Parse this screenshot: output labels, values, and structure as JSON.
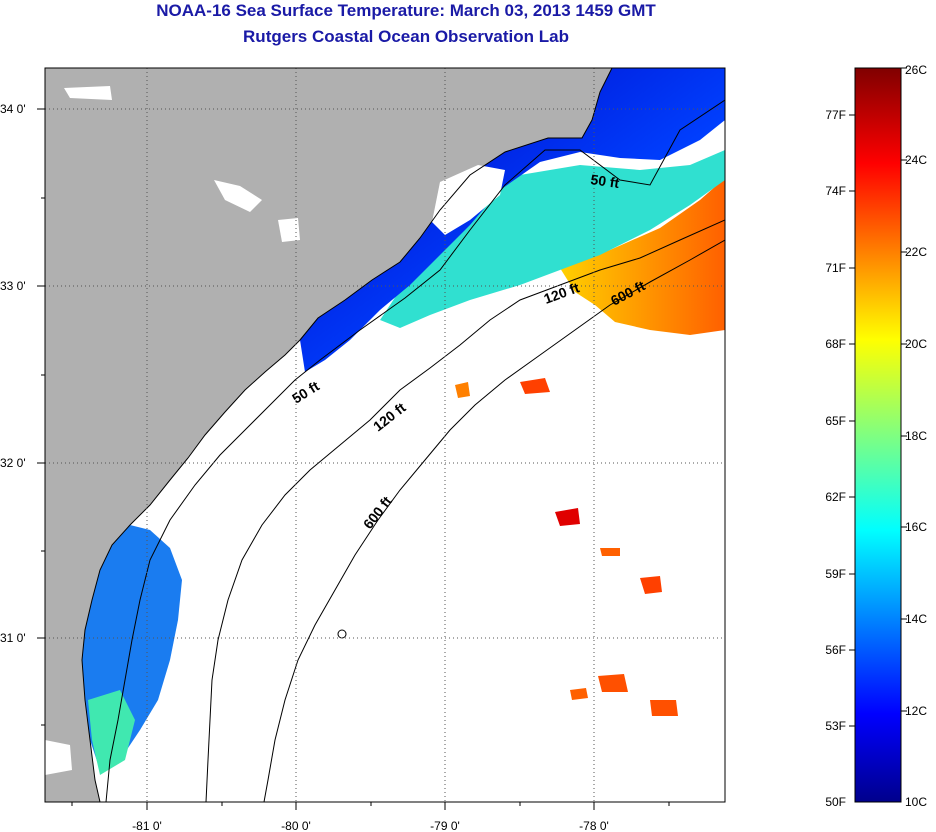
{
  "header": {
    "title": "NOAA-16 Sea Surface Temperature:  March 03, 2013 1459 GMT",
    "subtitle": "Rutgers Coastal Ocean Observation Lab"
  },
  "map": {
    "longitude_labels": [
      "-81 0'",
      "-80 0'",
      "-79 0'",
      "-78 0'"
    ],
    "latitude_labels": [
      "34 0'",
      "33 0'",
      "32 0'",
      "31 0'"
    ],
    "contour_labels": [
      "50 ft",
      "120 ft",
      "600 ft",
      "50 ft",
      "120 ft",
      "600 ft"
    ],
    "colors": {
      "land": "#b0b0b0",
      "no_data": "#ffffff",
      "coastline": "#000000"
    }
  },
  "colorbar": {
    "fahrenheit_labels": [
      "77F",
      "74F",
      "71F",
      "68F",
      "65F",
      "62F",
      "59F",
      "56F",
      "53F",
      "50F"
    ],
    "celsius_labels": [
      "26C",
      "24C",
      "22C",
      "20C",
      "18C",
      "16C",
      "14C",
      "12C",
      "10C"
    ],
    "colormap": [
      "#800000",
      "#ff0000",
      "#ff8000",
      "#ffff00",
      "#80ff80",
      "#00ffff",
      "#0080ff",
      "#0000ff",
      "#000080"
    ]
  }
}
